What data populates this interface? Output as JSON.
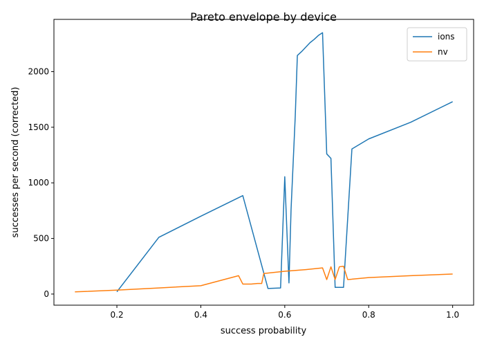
{
  "chart_data": {
    "type": "line",
    "title": "Pareto envelope by device",
    "xlabel": "success probability",
    "ylabel": "successes per second (corrected)",
    "xlim": [
      0.05,
      1.05
    ],
    "ylim": [
      -100,
      2470
    ],
    "xticks": [
      0.2,
      0.4,
      0.6,
      0.8,
      1.0
    ],
    "xtick_labels": [
      "0.2",
      "0.4",
      "0.6",
      "0.8",
      "1.0"
    ],
    "yticks": [
      0,
      500,
      1000,
      1500,
      2000
    ],
    "ytick_labels": [
      "0",
      "500",
      "1000",
      "1500",
      "2000"
    ],
    "grid": false,
    "legend_position": "upper right",
    "series": [
      {
        "name": "ions",
        "color": "#1f77b4",
        "x": [
          0.2,
          0.3,
          0.4,
          0.5,
          0.56,
          0.59,
          0.6,
          0.61,
          0.615,
          0.625,
          0.63,
          0.64,
          0.66,
          0.67,
          0.68,
          0.69,
          0.7,
          0.71,
          0.72,
          0.74,
          0.76,
          0.8,
          0.9,
          1.0
        ],
        "y": [
          20,
          510,
          700,
          885,
          50,
          55,
          1055,
          100,
          760,
          1600,
          2145,
          2180,
          2260,
          2290,
          2325,
          2350,
          1260,
          1220,
          60,
          60,
          1305,
          1395,
          1545,
          1730
        ]
      },
      {
        "name": "nv",
        "color": "#ff7f0e",
        "x": [
          0.1,
          0.2,
          0.3,
          0.4,
          0.49,
          0.5,
          0.52,
          0.535,
          0.545,
          0.55,
          0.6,
          0.65,
          0.69,
          0.7,
          0.71,
          0.72,
          0.73,
          0.74,
          0.75,
          0.8,
          0.9,
          1.0
        ],
        "y": [
          20,
          35,
          55,
          75,
          165,
          90,
          90,
          95,
          95,
          185,
          205,
          220,
          235,
          130,
          245,
          130,
          245,
          250,
          130,
          148,
          165,
          180
        ]
      }
    ]
  }
}
